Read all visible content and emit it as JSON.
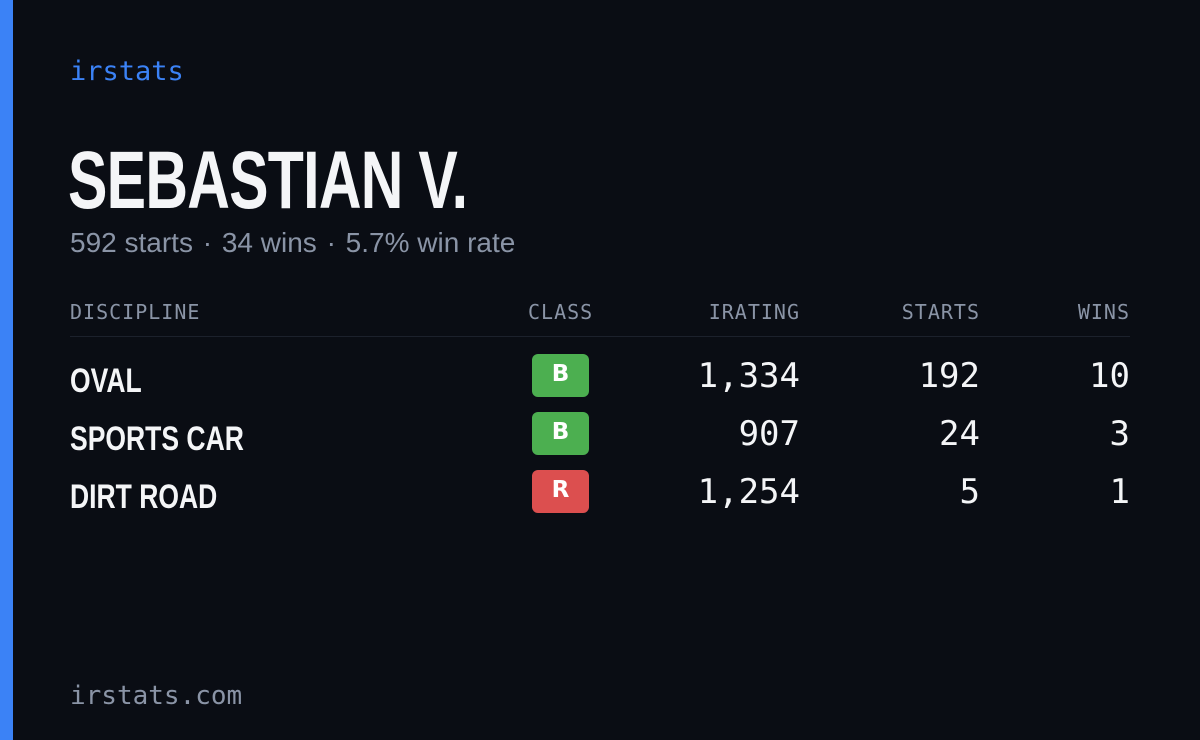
{
  "brand": "irstats",
  "driver": {
    "name": "SEBASTIAN V.",
    "starts_text": "592 starts",
    "wins_text": "34 wins",
    "win_rate_text": "5.7% win rate",
    "separator": "·"
  },
  "table": {
    "headers": {
      "discipline": "DISCIPLINE",
      "class": "CLASS",
      "irating": "IRATING",
      "starts": "STARTS",
      "wins": "WINS"
    },
    "rows": [
      {
        "discipline": "OVAL",
        "class": "B",
        "class_color": "#4caf50",
        "irating": "1,334",
        "starts": "192",
        "wins": "10"
      },
      {
        "discipline": "SPORTS CAR",
        "class": "B",
        "class_color": "#4caf50",
        "irating": "907",
        "starts": "24",
        "wins": "3"
      },
      {
        "discipline": "DIRT ROAD",
        "class": "R",
        "class_color": "#dc4f4f",
        "irating": "1,254",
        "starts": "5",
        "wins": "1"
      }
    ]
  },
  "footer": "irstats.com",
  "colors": {
    "accent": "#3b82f6",
    "background": "#0a0d14",
    "muted_text": "#8a94a6",
    "primary_text": "#f4f5f7"
  }
}
